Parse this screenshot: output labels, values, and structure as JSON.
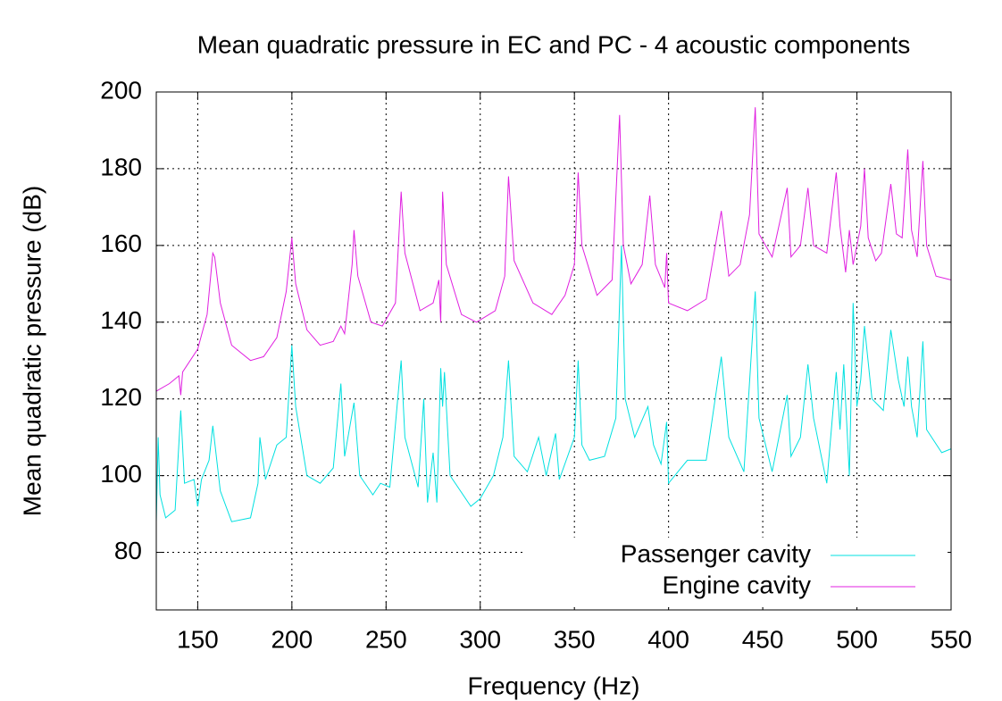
{
  "chart_data": {
    "type": "line",
    "title": "Mean quadratic pressure in EC and PC - 4 acoustic components",
    "x_label": "Frequency (Hz)",
    "y_label": "Mean quadratic pressure (dB)",
    "xlim": [
      128,
      550
    ],
    "ylim": [
      65,
      200
    ],
    "xticks": [
      150,
      200,
      250,
      300,
      350,
      400,
      450,
      500,
      550
    ],
    "yticks": [
      80,
      100,
      120,
      140,
      160,
      180,
      200
    ],
    "grid": true,
    "legend": "lower right",
    "series": [
      {
        "name": "Passenger cavity",
        "color": "#00e0e0",
        "x": [
          128,
          129,
          130,
          133,
          138,
          141,
          143,
          148,
          150,
          152,
          156,
          158,
          162,
          168,
          178,
          182,
          183,
          186,
          192,
          197,
          200,
          202,
          208,
          215,
          222,
          226,
          228,
          233,
          236,
          243,
          247,
          252,
          258,
          260,
          267,
          270,
          272,
          275,
          277,
          279,
          280,
          281,
          284,
          295,
          300,
          307,
          312,
          315,
          318,
          325,
          331,
          335,
          340,
          342,
          350,
          352,
          354,
          358,
          366,
          372,
          375,
          377,
          382,
          389,
          392,
          396,
          399,
          400,
          410,
          420,
          428,
          432,
          440,
          446,
          448,
          455,
          463,
          465,
          470,
          474,
          477,
          484,
          489,
          491,
          493,
          496,
          498,
          500,
          502,
          504,
          508,
          514,
          518,
          522,
          525,
          527,
          529,
          532,
          535,
          537,
          545,
          550
        ],
        "values": [
          88,
          110,
          95,
          89,
          91,
          117,
          98,
          99,
          92,
          99,
          104,
          113,
          96,
          88,
          89,
          98,
          110,
          99,
          108,
          110,
          134,
          118,
          100,
          98,
          102,
          124,
          105,
          119,
          100,
          95,
          98,
          97,
          130,
          110,
          97,
          120,
          93,
          106,
          93,
          128,
          118,
          127,
          100,
          92,
          94,
          100,
          110,
          130,
          105,
          101,
          110,
          100,
          111,
          99,
          110,
          130,
          108,
          104,
          105,
          115,
          160,
          120,
          110,
          118,
          108,
          103,
          114,
          98,
          104,
          104,
          131,
          110,
          101,
          148,
          115,
          101,
          121,
          105,
          110,
          129,
          115,
          98,
          127,
          112,
          129,
          100,
          145,
          118,
          125,
          139,
          120,
          117,
          138,
          125,
          118,
          131,
          118,
          110,
          135,
          112,
          106,
          107
        ]
      },
      {
        "name": "Engine cavity",
        "color": "#e020e0",
        "x": [
          128,
          135,
          140,
          141,
          142,
          150,
          155,
          158,
          159,
          162,
          168,
          178,
          185,
          192,
          197,
          200,
          202,
          208,
          215,
          222,
          226,
          228,
          232,
          233,
          235,
          242,
          248,
          255,
          258,
          260,
          268,
          275,
          278,
          279,
          280,
          282,
          290,
          298,
          308,
          313,
          315,
          318,
          328,
          338,
          345,
          350,
          352,
          354,
          362,
          370,
          374,
          376,
          380,
          386,
          390,
          393,
          398,
          399,
          400,
          410,
          420,
          428,
          432,
          438,
          443,
          446,
          448,
          455,
          463,
          465,
          470,
          474,
          477,
          484,
          489,
          491,
          494,
          496,
          498,
          502,
          504,
          506,
          510,
          513,
          518,
          521,
          524,
          527,
          529,
          532,
          535,
          537,
          542,
          550
        ],
        "values": [
          122,
          124,
          126,
          121,
          127,
          133,
          142,
          158,
          157,
          145,
          134,
          130,
          131,
          136,
          148,
          162,
          150,
          138,
          134,
          135,
          139,
          137,
          155,
          164,
          152,
          140,
          139,
          145,
          174,
          158,
          143,
          145,
          151,
          140,
          174,
          155,
          142,
          140,
          143,
          152,
          178,
          156,
          145,
          142,
          147,
          155,
          179,
          160,
          147,
          151,
          194,
          160,
          150,
          155,
          173,
          155,
          149,
          158,
          145,
          143,
          146,
          169,
          152,
          155,
          168,
          196,
          163,
          157,
          175,
          157,
          160,
          175,
          160,
          158,
          179,
          165,
          153,
          164,
          155,
          165,
          180,
          162,
          156,
          158,
          176,
          163,
          162,
          185,
          164,
          157,
          182,
          160,
          152,
          151
        ]
      }
    ]
  }
}
